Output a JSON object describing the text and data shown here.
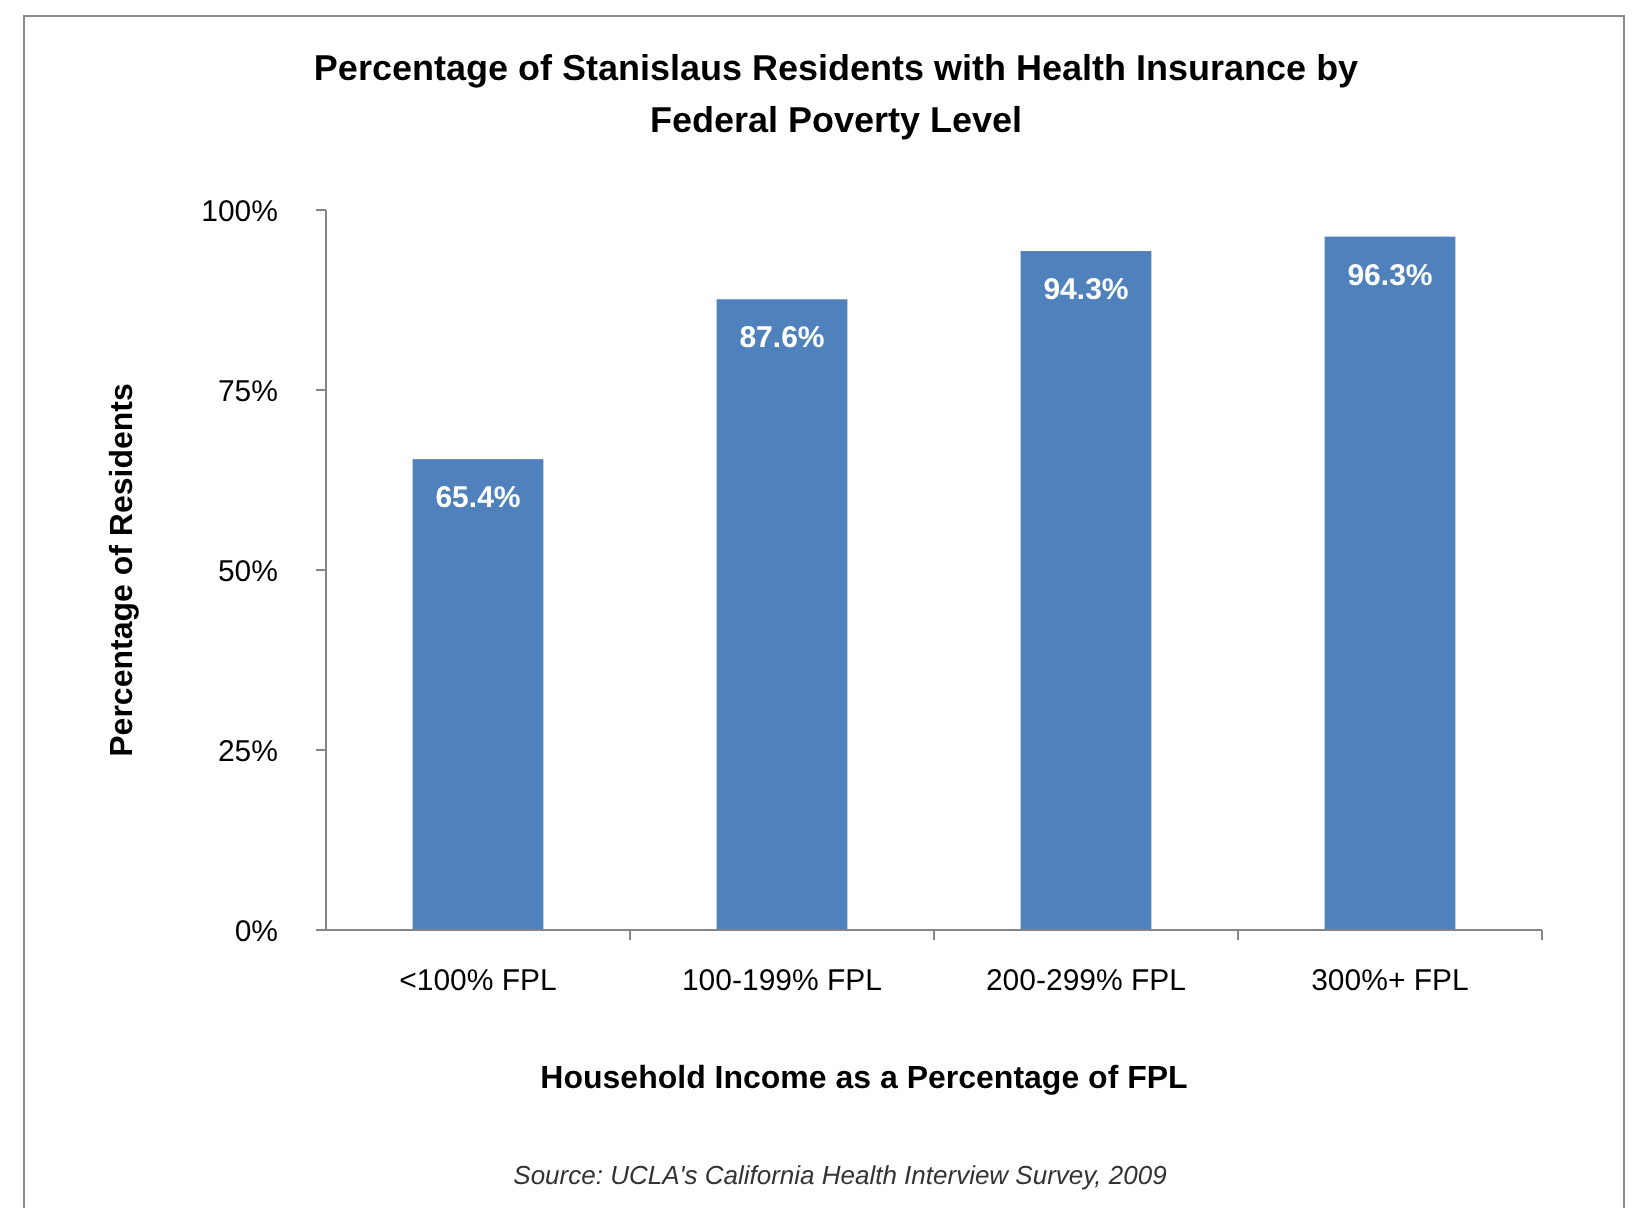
{
  "chart_data": {
    "type": "bar",
    "title": "Percentage of Stanislaus Residents with Health Insurance by Federal Poverty Level",
    "xlabel": "Household Income as a Percentage of FPL",
    "ylabel": "Percentage of Residents",
    "categories": [
      "<100% FPL",
      "100-199% FPL",
      "200-299% FPL",
      "300%+ FPL"
    ],
    "values": [
      65.4,
      87.6,
      94.3,
      96.3
    ],
    "value_labels": [
      "65.4%",
      "87.6%",
      "94.3%",
      "96.3%"
    ],
    "color": "#4f81bd",
    "ylim": [
      0,
      100
    ],
    "yticks": [
      {
        "value": 0,
        "label": "0%"
      },
      {
        "value": 25,
        "label": "25%"
      },
      {
        "value": 50,
        "label": "50%"
      },
      {
        "value": 75,
        "label": "75%"
      },
      {
        "value": 100,
        "label": "100%"
      }
    ],
    "grid": false,
    "annotations": [
      "Source: UCLA's California Health Interview Survey, 2009"
    ]
  }
}
